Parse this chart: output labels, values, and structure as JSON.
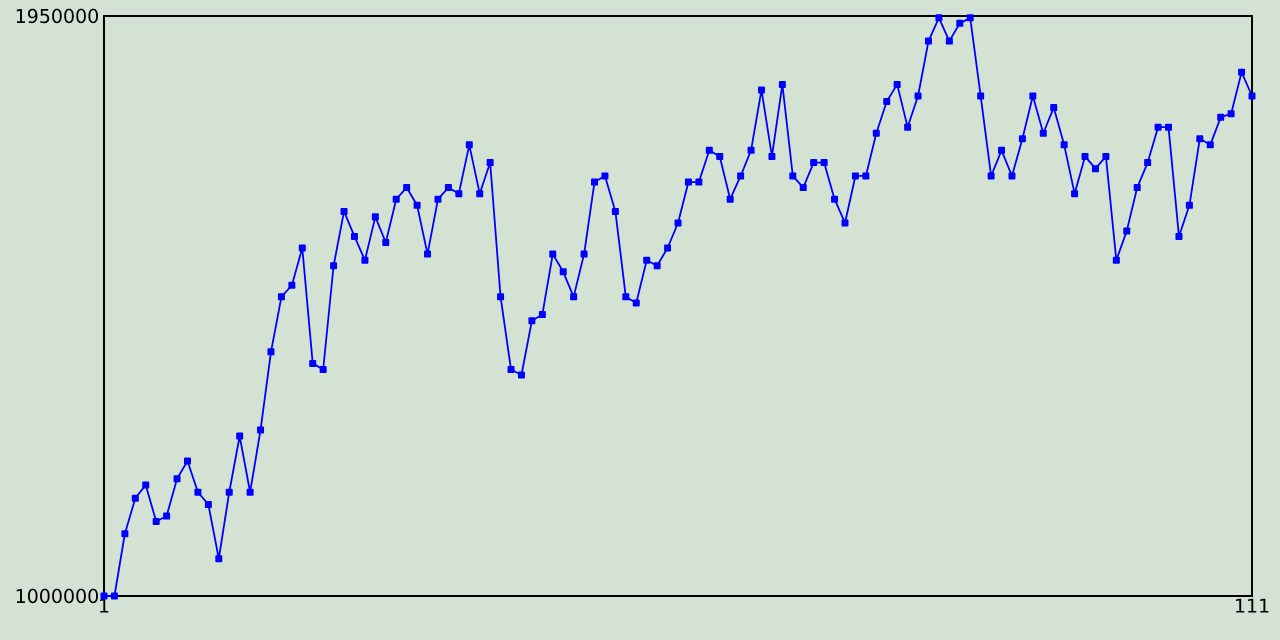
{
  "chart_data": {
    "type": "line",
    "x": [
      1,
      2,
      3,
      4,
      5,
      6,
      7,
      8,
      9,
      10,
      11,
      12,
      13,
      14,
      15,
      16,
      17,
      18,
      19,
      20,
      21,
      22,
      23,
      24,
      25,
      26,
      27,
      28,
      29,
      30,
      31,
      32,
      33,
      34,
      35,
      36,
      37,
      38,
      39,
      40,
      41,
      42,
      43,
      44,
      45,
      46,
      47,
      48,
      49,
      50,
      51,
      52,
      53,
      54,
      55,
      56,
      57,
      58,
      59,
      60,
      61,
      62,
      63,
      64,
      65,
      66,
      67,
      68,
      69,
      70,
      71,
      72,
      73,
      74,
      75,
      76,
      77,
      78,
      79,
      80,
      81,
      82,
      83,
      84,
      85,
      86,
      87,
      88,
      89,
      90,
      91,
      92,
      93,
      94,
      95,
      96,
      97,
      98,
      99,
      100,
      101,
      102,
      103,
      104,
      105,
      106,
      107,
      108,
      109,
      110,
      111
    ],
    "series": [
      {
        "color": "#0000ff",
        "values": [
          1000000,
          1000000,
          1102000,
          1160000,
          1182000,
          1122000,
          1131000,
          1192000,
          1221000,
          1170000,
          1150000,
          1061000,
          1170000,
          1262000,
          1170000,
          1272000,
          1400000,
          1490000,
          1509000,
          1570000,
          1381000,
          1371000,
          1541000,
          1630000,
          1589000,
          1550000,
          1621000,
          1579000,
          1650000,
          1669000,
          1640000,
          1560000,
          1650000,
          1669000,
          1659000,
          1739000,
          1659000,
          1710000,
          1490000,
          1371000,
          1362000,
          1451000,
          1461000,
          1560000,
          1531000,
          1490000,
          1560000,
          1678000,
          1688000,
          1630000,
          1490000,
          1480000,
          1550000,
          1541000,
          1570000,
          1611000,
          1678000,
          1678000,
          1730000,
          1720000,
          1650000,
          1688000,
          1730000,
          1829000,
          1720000,
          1838000,
          1688000,
          1669000,
          1710000,
          1710000,
          1650000,
          1611000,
          1688000,
          1688000,
          1758000,
          1810000,
          1838000,
          1768000,
          1819000,
          1909000,
          1947000,
          1909000,
          1938000,
          1947000,
          1819000,
          1688000,
          1730000,
          1688000,
          1749000,
          1819000,
          1758000,
          1800000,
          1739000,
          1659000,
          1720000,
          1700000,
          1720000,
          1550000,
          1598000,
          1669000,
          1710000,
          1768000,
          1768000,
          1589000,
          1640000,
          1749000,
          1739000,
          1784000,
          1790000,
          1858000,
          1819000
        ]
      }
    ],
    "xlim": [
      1,
      111
    ],
    "ylim": [
      1000000,
      1950000
    ],
    "xticks": [
      1,
      111
    ],
    "yticks": [
      1000000,
      1950000
    ],
    "marker": "square",
    "line_style": "solid"
  }
}
